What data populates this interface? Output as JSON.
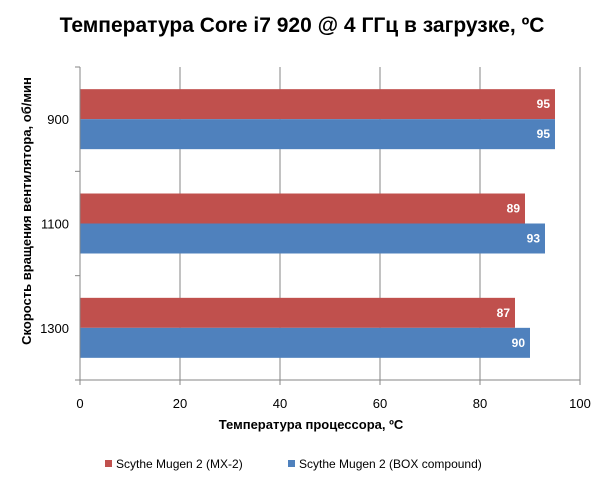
{
  "chart_data": {
    "type": "bar",
    "orientation": "horizontal",
    "title": "Температура Core i7 920 @ 4 ГГц в загрузке, ºС",
    "xlabel": "Температура процессора, ºС",
    "ylabel": "Скорость вращения вентилятора, об/мин",
    "categories": [
      "900",
      "1100",
      "1300"
    ],
    "series": [
      {
        "name": "Scythe Mugen 2 (MX-2)",
        "color": "#c0504d",
        "values": [
          95,
          89,
          87
        ]
      },
      {
        "name": "Scythe Mugen 2 (BOX compound)",
        "color": "#4f81bd",
        "values": [
          95,
          93,
          90
        ]
      }
    ],
    "xlim": [
      0,
      100
    ],
    "xticks": [
      0,
      20,
      40,
      60,
      80,
      100
    ],
    "grid": "vertical",
    "legend_position": "bottom",
    "data_labels": true
  }
}
